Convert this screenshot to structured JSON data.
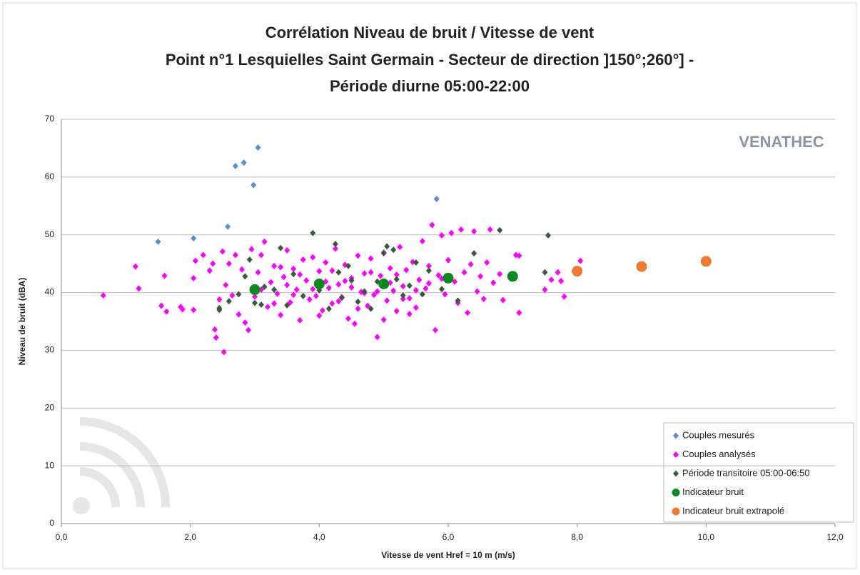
{
  "chart_data": {
    "type": "scatter",
    "title": [
      "Corrélation Niveau de bruit / Vitesse de vent",
      "Point n°1 Lesquielles Saint Germain - Secteur de direction ]150°;260°] -",
      "Période diurne 05:00-22:00"
    ],
    "xlabel": "Vitesse de vent Href = 10 m (m/s)",
    "ylabel": "Niveau de bruit (dBA)",
    "annotations": [
      "VENATHEC"
    ],
    "xlim": [
      0,
      12
    ],
    "ylim": [
      0,
      70
    ],
    "xticks": [
      {
        "value": 0,
        "label": "0,0"
      },
      {
        "value": 2,
        "label": "2,0"
      },
      {
        "value": 4,
        "label": "4,0"
      },
      {
        "value": 6,
        "label": "6,0"
      },
      {
        "value": 8,
        "label": "8,0"
      },
      {
        "value": 10,
        "label": "10,0"
      },
      {
        "value": 12,
        "label": "12,0"
      }
    ],
    "yticks": [
      0,
      10,
      20,
      30,
      40,
      50,
      60,
      70
    ],
    "grid": true,
    "legend": "lower right",
    "series": [
      {
        "name": "Couples mesurés",
        "color": "#5b8fd0",
        "marker": "diamond",
        "x": [
          1.5,
          2.05,
          2.58,
          2.7,
          2.83,
          2.98,
          3.05,
          5.82
        ],
        "values": [
          48.8,
          49.4,
          51.4,
          61.9,
          62.5,
          58.6,
          65.1,
          56.2
        ]
      },
      {
        "name": "Couples analysés",
        "color": "#ff00ff",
        "marker": "diamond",
        "x": [
          0.65,
          1.15,
          1.2,
          1.55,
          1.6,
          1.63,
          1.85,
          1.88,
          2.05,
          2.05,
          2.08,
          2.2,
          2.3,
          2.35,
          2.38,
          2.4,
          2.45,
          2.5,
          2.52,
          2.55,
          2.6,
          2.65,
          2.7,
          2.75,
          2.8,
          2.85,
          2.9,
          2.95,
          3.0,
          3.05,
          3.1,
          3.15,
          3.2,
          3.25,
          3.3,
          3.35,
          3.4,
          3.45,
          3.5,
          3.55,
          3.6,
          3.65,
          3.7,
          3.75,
          3.8,
          3.85,
          3.9,
          3.95,
          4.0,
          4.05,
          4.1,
          4.15,
          4.2,
          4.25,
          4.3,
          4.35,
          4.4,
          4.45,
          4.5,
          4.55,
          4.6,
          4.65,
          4.7,
          4.75,
          4.8,
          4.85,
          4.9,
          4.95,
          5.0,
          5.05,
          5.1,
          5.15,
          5.2,
          5.25,
          5.3,
          5.35,
          5.4,
          5.45,
          5.5,
          5.55,
          5.6,
          5.65,
          5.7,
          5.75,
          5.8,
          5.85,
          5.9,
          5.95,
          6.0,
          6.05,
          6.1,
          6.15,
          6.2,
          6.25,
          6.3,
          6.35,
          6.4,
          6.45,
          6.5,
          6.55,
          6.6,
          6.65,
          6.7,
          6.8,
          6.85,
          7.05,
          7.1,
          7.1,
          7.5,
          7.6,
          7.7,
          7.75,
          7.8,
          8.05,
          3.1,
          3.3,
          3.5,
          3.7,
          3.9,
          4.1,
          4.3,
          4.5,
          4.7,
          4.9,
          5.1,
          5.3,
          5.5,
          5.7,
          5.9,
          4.2,
          4.4,
          4.8,
          5.2,
          3.6,
          4.6,
          5.4,
          3.4,
          4.0,
          5.0
        ],
        "values": [
          39.5,
          44.5,
          40.7,
          37.7,
          42.9,
          36.7,
          37.5,
          37.1,
          42.5,
          37,
          45.5,
          46.5,
          43.8,
          45,
          33.6,
          32.2,
          38.8,
          47.1,
          29.7,
          41.3,
          45,
          39.5,
          46.5,
          36.2,
          44,
          34.8,
          33.5,
          47.5,
          39.3,
          43.5,
          46.5,
          48.8,
          37.5,
          41.8,
          44.6,
          39.8,
          36.1,
          42.7,
          47.3,
          38.3,
          44.1,
          40.5,
          35.2,
          45.7,
          42.1,
          38.8,
          46.1,
          39.4,
          43.7,
          36.9,
          45.2,
          40.8,
          38.1,
          47.6,
          41.4,
          39.2,
          44.8,
          35.5,
          42.5,
          34.6,
          46.4,
          40.1,
          43.3,
          37.7,
          45.9,
          39.6,
          32.3,
          42.9,
          46.8,
          38.6,
          44.2,
          40.3,
          36.8,
          47.9,
          41.1,
          43.9,
          39,
          45.3,
          37.4,
          42.2,
          48.9,
          40.7,
          44.6,
          51.7,
          33.5,
          43,
          49.9,
          39.7,
          45.6,
          50.3,
          41.9,
          38.2,
          50.9,
          43.5,
          36.5,
          44.9,
          50.6,
          40.2,
          42.8,
          38.9,
          45.2,
          50.9,
          41.7,
          43.2,
          38.7,
          46.5,
          36.5,
          46.4,
          40.5,
          42.2,
          43.5,
          42,
          39.3,
          45.5,
          40.5,
          38.1,
          41.3,
          43.1,
          40.6,
          41.9,
          38.5,
          40.9,
          39.9,
          40.2,
          41.7,
          38.9,
          40.4,
          41.6,
          42.4,
          43.8,
          42.0,
          43.5,
          43.1,
          39.6,
          37.2,
          36.3,
          44.4,
          36.0,
          35.3
        ]
      },
      {
        "name": "Période transitoire 05:00-06:50",
        "color": "#3b5a3b",
        "marker": "diamond",
        "x": [
          2.45,
          2.45,
          2.6,
          2.75,
          2.85,
          2.92,
          3.0,
          3.1,
          3.15,
          3.4,
          3.5,
          3.6,
          3.75,
          3.9,
          4.0,
          4.15,
          4.25,
          4.35,
          4.45,
          4.5,
          4.6,
          4.7,
          4.8,
          4.9,
          5.0,
          5.05,
          5.15,
          5.2,
          5.3,
          5.5,
          5.6,
          5.7,
          5.9,
          6.15,
          6.4,
          6.8,
          7.0,
          7.5,
          7.55,
          3.3,
          4.3,
          5.4
        ],
        "values": [
          37,
          37.3,
          38.5,
          39.7,
          42.8,
          45.7,
          38.2,
          37.9,
          41,
          47.7,
          37.8,
          43.2,
          39.4,
          50.3,
          40.4,
          37.2,
          48.4,
          39.1,
          44.6,
          42.1,
          38.4,
          40.2,
          37.2,
          41.9,
          46.9,
          48,
          47.4,
          42.3,
          39.5,
          45.2,
          39.7,
          43.8,
          40.6,
          38.6,
          46.8,
          50.8,
          42.8,
          43.5,
          49.9,
          40.5,
          43.5,
          41.2
        ]
      },
      {
        "name": "Indicateur bruit",
        "color": "#0a8a1e",
        "marker": "circle",
        "x": [
          3,
          4,
          5,
          6,
          7
        ],
        "values": [
          40.5,
          41.5,
          41.5,
          42.5,
          42.8
        ]
      },
      {
        "name": "Indicateur bruit extrapolé",
        "color": "#f07b30",
        "marker": "circle",
        "x": [
          8,
          9,
          10
        ],
        "values": [
          43.7,
          44.5,
          45.4
        ]
      }
    ]
  }
}
